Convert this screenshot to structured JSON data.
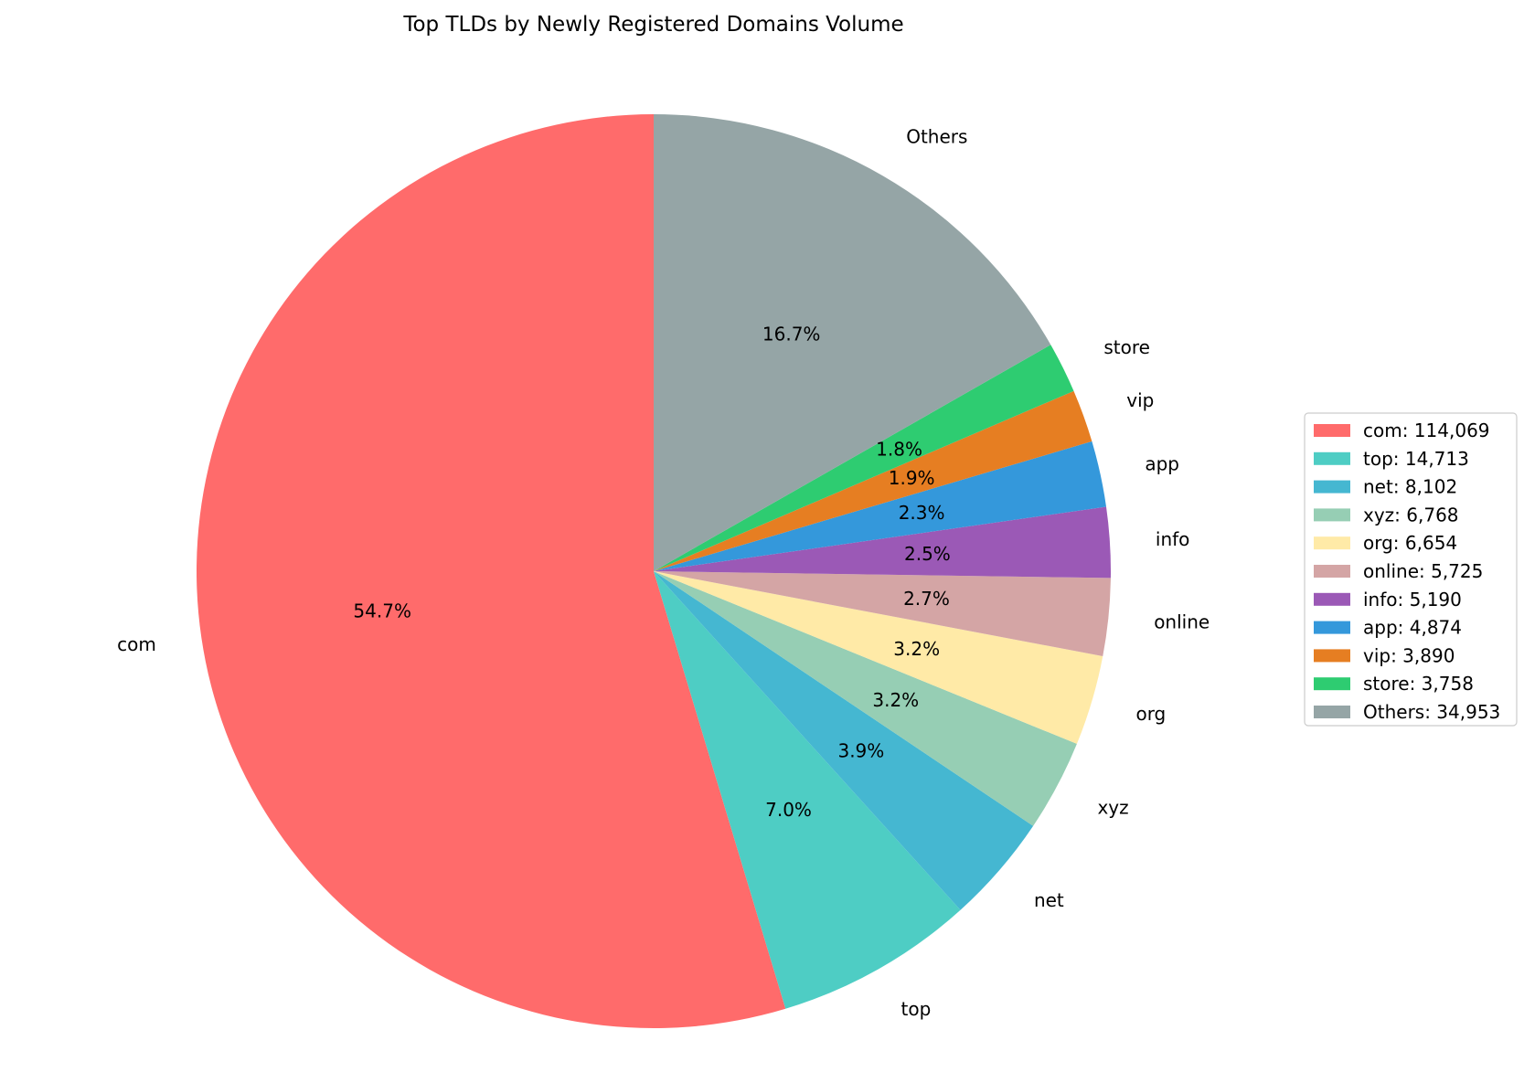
{
  "chart_data": {
    "type": "pie",
    "title": "Top TLDs by Newly Registered Domains Volume",
    "start_angle_deg": 90,
    "direction": "counterclockwise",
    "legend_position": "right",
    "slices": [
      {
        "label": "com",
        "value": 114069,
        "pct_label": "54.7%",
        "legend": "com: 114,069",
        "color": "#FF6B6B"
      },
      {
        "label": "top",
        "value": 14713,
        "pct_label": "7.0%",
        "legend": "top: 14,713",
        "color": "#4ECDC4"
      },
      {
        "label": "net",
        "value": 8102,
        "pct_label": "3.9%",
        "legend": "net: 8,102",
        "color": "#45B7D1"
      },
      {
        "label": "xyz",
        "value": 6768,
        "pct_label": "3.2%",
        "legend": "xyz: 6,768",
        "color": "#96CEB4"
      },
      {
        "label": "org",
        "value": 6654,
        "pct_label": "3.2%",
        "legend": "org: 6,654",
        "color": "#FFEAA7"
      },
      {
        "label": "online",
        "value": 5725,
        "pct_label": "2.7%",
        "legend": "online: 5,725",
        "color": "#D4A5A5"
      },
      {
        "label": "info",
        "value": 5190,
        "pct_label": "2.5%",
        "legend": "info: 5,190",
        "color": "#9B59B6"
      },
      {
        "label": "app",
        "value": 4874,
        "pct_label": "2.3%",
        "legend": "app: 4,874",
        "color": "#3498DB"
      },
      {
        "label": "vip",
        "value": 3890,
        "pct_label": "1.9%",
        "legend": "vip: 3,890",
        "color": "#E67E22"
      },
      {
        "label": "store",
        "value": 3758,
        "pct_label": "1.8%",
        "legend": "store: 3,758",
        "color": "#2ECC71"
      },
      {
        "label": "Others",
        "value": 34953,
        "pct_label": "16.7%",
        "legend": "Others: 34,953",
        "color": "#95A5A6"
      }
    ]
  }
}
